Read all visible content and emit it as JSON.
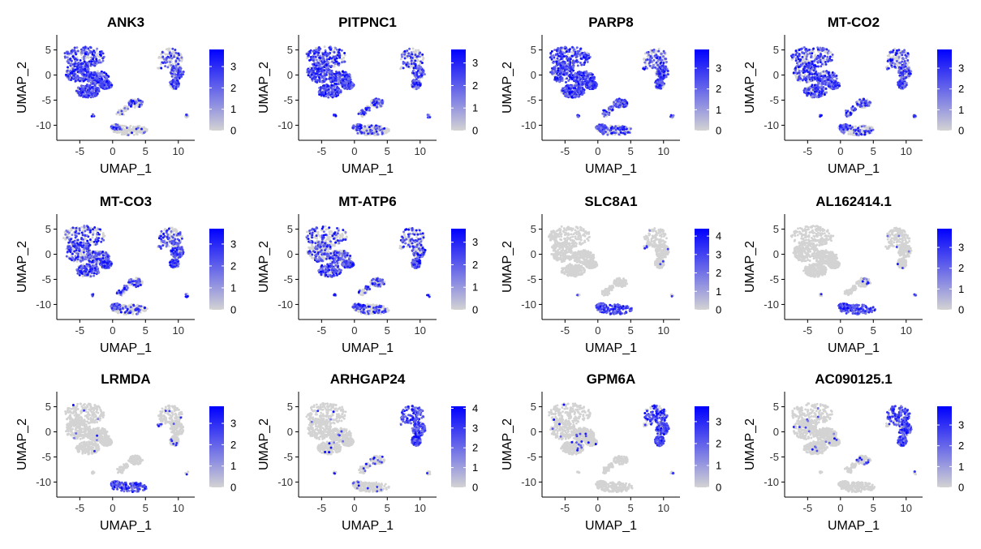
{
  "colors": {
    "low": "#d3d3d3",
    "high": "#0000ff",
    "axis": "#000000"
  },
  "chart_data": [
    {
      "type": "scatter",
      "title": "ANK3",
      "xlabel": "UMAP_1",
      "ylabel": "UMAP_2",
      "xticks": [
        -5,
        0,
        5,
        10
      ],
      "yticks": [
        5,
        0,
        -5,
        -10
      ],
      "xlim": [
        -8.5,
        12.5
      ],
      "ylim": [
        -13,
        8
      ],
      "legend_ticks": [
        0,
        1,
        2,
        3
      ],
      "legend_max": 3.8,
      "grid": false,
      "legend_position": "right",
      "expression": {
        "A": 0.78,
        "B": 0.38,
        "C": 0.28,
        "D": 0.12,
        "E": 0.15,
        "F": 0.38
      }
    },
    {
      "type": "scatter",
      "title": "PITPNC1",
      "xlabel": "UMAP_1",
      "ylabel": "UMAP_2",
      "xticks": [
        -5,
        0,
        5,
        10
      ],
      "yticks": [
        5,
        0,
        -5,
        -10
      ],
      "xlim": [
        -8.5,
        12.5
      ],
      "ylim": [
        -13,
        8
      ],
      "legend_ticks": [
        0,
        1,
        2,
        3
      ],
      "legend_max": 3.6,
      "grid": false,
      "legend_position": "right",
      "expression": {
        "A": 0.74,
        "B": 0.42,
        "C": 0.42,
        "D": 0.25,
        "E": 0.2,
        "F": 0.52
      }
    },
    {
      "type": "scatter",
      "title": "PARP8",
      "xlabel": "UMAP_1",
      "ylabel": "UMAP_2",
      "xticks": [
        -5,
        0,
        5,
        10
      ],
      "yticks": [
        5,
        0,
        -5,
        -10
      ],
      "xlim": [
        -8.5,
        12.5
      ],
      "ylim": [
        -13,
        8
      ],
      "legend_ticks": [
        0,
        1,
        2,
        3
      ],
      "legend_max": 3.9,
      "grid": false,
      "legend_position": "right",
      "expression": {
        "A": 0.8,
        "B": 0.5,
        "C": 0.6,
        "D": 0.55,
        "E": 0.4,
        "F": 0.72
      }
    },
    {
      "type": "scatter",
      "title": "MT-CO2",
      "xlabel": "UMAP_1",
      "ylabel": "UMAP_2",
      "xticks": [
        -5,
        0,
        5,
        10
      ],
      "yticks": [
        5,
        0,
        -5,
        -10
      ],
      "xlim": [
        -8.5,
        12.5
      ],
      "ylim": [
        -13,
        8
      ],
      "legend_ticks": [
        0,
        1,
        2,
        3
      ],
      "legend_max": 3.9,
      "grid": false,
      "legend_position": "right",
      "expression": {
        "A": 0.45,
        "B": 0.42,
        "C": 0.38,
        "D": 0.35,
        "E": 0.3,
        "F": 0.5
      }
    },
    {
      "type": "scatter",
      "title": "MT-CO3",
      "xlabel": "UMAP_1",
      "ylabel": "UMAP_2",
      "xticks": [
        -5,
        0,
        5,
        10
      ],
      "yticks": [
        5,
        0,
        -5,
        -10
      ],
      "xlim": [
        -8.5,
        12.5
      ],
      "ylim": [
        -13,
        8
      ],
      "legend_ticks": [
        0,
        1,
        2,
        3
      ],
      "legend_max": 3.7,
      "grid": false,
      "legend_position": "right",
      "expression": {
        "A": 0.45,
        "B": 0.45,
        "C": 0.38,
        "D": 0.35,
        "E": 0.3,
        "F": 0.5
      }
    },
    {
      "type": "scatter",
      "title": "MT-ATP6",
      "xlabel": "UMAP_1",
      "ylabel": "UMAP_2",
      "xticks": [
        -5,
        0,
        5,
        10
      ],
      "yticks": [
        5,
        0,
        -5,
        -10
      ],
      "xlim": [
        -8.5,
        12.5
      ],
      "ylim": [
        -13,
        8
      ],
      "legend_ticks": [
        0,
        1,
        2,
        3
      ],
      "legend_max": 3.6,
      "grid": false,
      "legend_position": "right",
      "expression": {
        "A": 0.4,
        "B": 0.4,
        "C": 0.32,
        "D": 0.3,
        "E": 0.25,
        "F": 0.45
      }
    },
    {
      "type": "scatter",
      "title": "SLC8A1",
      "xlabel": "UMAP_1",
      "ylabel": "UMAP_2",
      "xticks": [
        -5,
        0,
        5,
        10
      ],
      "yticks": [
        5,
        0,
        -5,
        -10
      ],
      "xlim": [
        -8.5,
        12.5
      ],
      "ylim": [
        -13,
        8
      ],
      "legend_ticks": [
        0,
        1,
        2,
        3,
        4
      ],
      "legend_max": 4.4,
      "grid": false,
      "legend_position": "right",
      "expression": {
        "A": 0.0,
        "B": 0.02,
        "C": 0.0,
        "D": 0.0,
        "E": 0.85,
        "F": 0.25
      }
    },
    {
      "type": "scatter",
      "title": "AL162414.1",
      "xlabel": "UMAP_1",
      "ylabel": "UMAP_2",
      "xticks": [
        -5,
        0,
        5,
        10
      ],
      "yticks": [
        5,
        0,
        -5,
        -10
      ],
      "xlim": [
        -8.5,
        12.5
      ],
      "ylim": [
        -13,
        8
      ],
      "legend_ticks": [
        0,
        1,
        2,
        3
      ],
      "legend_max": 3.9,
      "grid": false,
      "legend_position": "right",
      "expression": {
        "A": 0.0,
        "B": 0.02,
        "C": 0.05,
        "D": 0.0,
        "E": 0.8,
        "F": 0.15
      }
    },
    {
      "type": "scatter",
      "title": "LRMDA",
      "xlabel": "UMAP_1",
      "ylabel": "UMAP_2",
      "xticks": [
        -5,
        0,
        5,
        10
      ],
      "yticks": [
        5,
        0,
        -5,
        -10
      ],
      "xlim": [
        -8.5,
        12.5
      ],
      "ylim": [
        -13,
        8
      ],
      "legend_ticks": [
        0,
        1,
        2,
        3
      ],
      "legend_max": 3.8,
      "grid": false,
      "legend_position": "right",
      "expression": {
        "A": 0.01,
        "B": 0.02,
        "C": 0.0,
        "D": 0.0,
        "E": 0.82,
        "F": 0.3
      }
    },
    {
      "type": "scatter",
      "title": "ARHGAP24",
      "xlabel": "UMAP_1",
      "ylabel": "UMAP_2",
      "xticks": [
        -5,
        0,
        5,
        10
      ],
      "yticks": [
        5,
        0,
        -5,
        -10
      ],
      "xlim": [
        -8.5,
        12.5
      ],
      "ylim": [
        -13,
        8
      ],
      "legend_ticks": [
        0,
        1,
        2,
        3,
        4
      ],
      "legend_max": 4.1,
      "grid": false,
      "legend_position": "right",
      "expression": {
        "A": 0.02,
        "B": 0.85,
        "C": 0.15,
        "D": 0.1,
        "E": 0.03,
        "F": 0.3
      }
    },
    {
      "type": "scatter",
      "title": "GPM6A",
      "xlabel": "UMAP_1",
      "ylabel": "UMAP_2",
      "xticks": [
        -5,
        0,
        5,
        10
      ],
      "yticks": [
        5,
        0,
        -5,
        -10
      ],
      "xlim": [
        -8.5,
        12.5
      ],
      "ylim": [
        -13,
        8
      ],
      "legend_ticks": [
        0,
        1,
        2,
        3
      ],
      "legend_max": 3.7,
      "grid": false,
      "legend_position": "right",
      "expression": {
        "A": 0.02,
        "B": 0.7,
        "C": 0.02,
        "D": 0.0,
        "E": 0.0,
        "F": 0.1
      }
    },
    {
      "type": "scatter",
      "title": "AC090125.1",
      "xlabel": "UMAP_1",
      "ylabel": "UMAP_2",
      "xticks": [
        -5,
        0,
        5,
        10
      ],
      "yticks": [
        5,
        0,
        -5,
        -10
      ],
      "xlim": [
        -8.5,
        12.5
      ],
      "ylim": [
        -13,
        8
      ],
      "legend_ticks": [
        0,
        1,
        2,
        3
      ],
      "legend_max": 3.9,
      "grid": false,
      "legend_position": "right",
      "expression": {
        "A": 0.02,
        "B": 0.75,
        "C": 0.08,
        "D": 0.0,
        "E": 0.0,
        "F": 0.1
      }
    }
  ]
}
